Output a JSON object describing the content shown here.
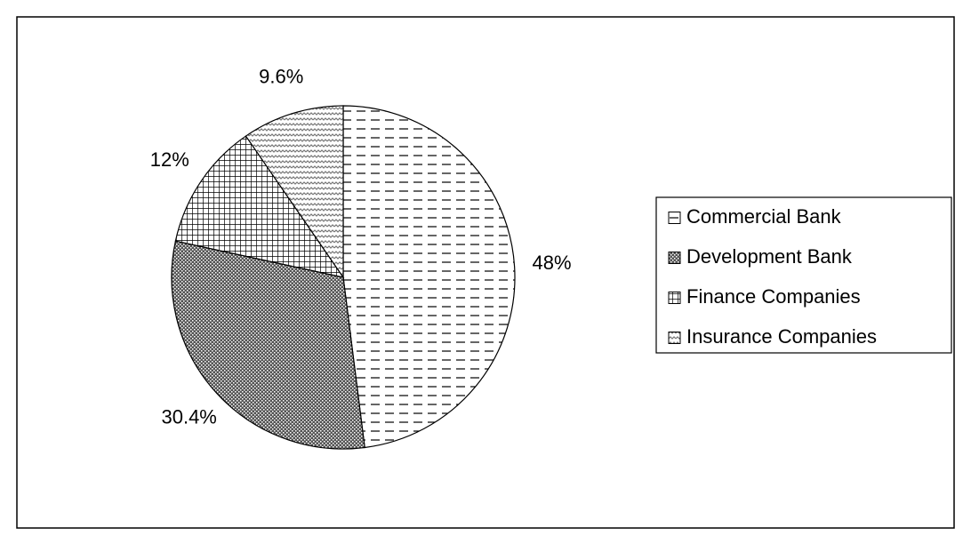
{
  "chart_data": {
    "type": "pie",
    "categories": [
      "Commercial Bank",
      "Development Bank",
      "Finance Companies",
      "Insurance Companies"
    ],
    "values": [
      48,
      30.4,
      12,
      9.6
    ],
    "value_labels": [
      "48%",
      "30.4%",
      "12%",
      "9.6%"
    ],
    "legend": "right"
  }
}
